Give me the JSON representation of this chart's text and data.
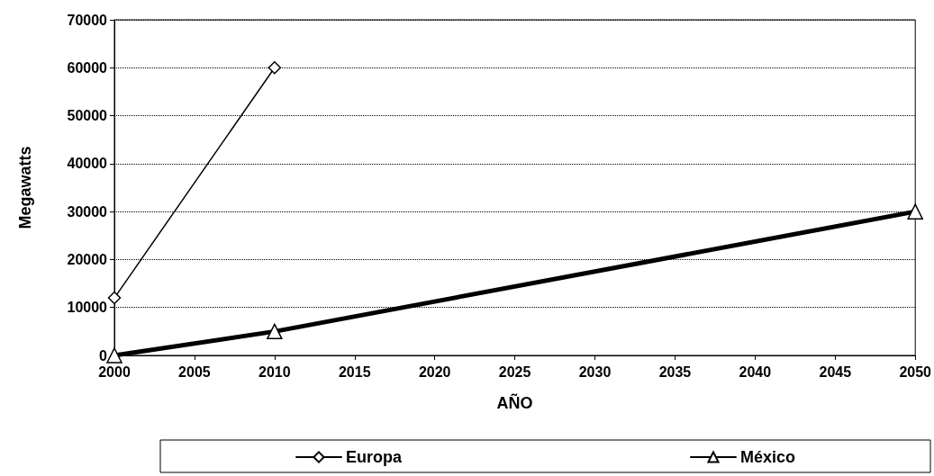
{
  "chart_data": {
    "type": "line",
    "xlabel": "AÑO",
    "ylabel": "Megawatts",
    "series": [
      {
        "name": "Europa",
        "color": "#000000",
        "x": [
          2000,
          2010
        ],
        "values": [
          12000,
          60000
        ],
        "marker": "diamond"
      },
      {
        "name": "México",
        "color": "#000000",
        "x": [
          2000,
          2010,
          2050
        ],
        "values": [
          0,
          5000,
          30000
        ],
        "marker": "triangle"
      }
    ],
    "xlim": [
      2000,
      2050
    ],
    "xticks": [
      2000,
      2005,
      2010,
      2015,
      2020,
      2025,
      2030,
      2035,
      2040,
      2045,
      2050
    ],
    "ylim": [
      0,
      70000
    ],
    "yticks": [
      0,
      10000,
      20000,
      30000,
      40000,
      50000,
      60000,
      70000
    ],
    "grid": "y",
    "legend": "bottom"
  }
}
